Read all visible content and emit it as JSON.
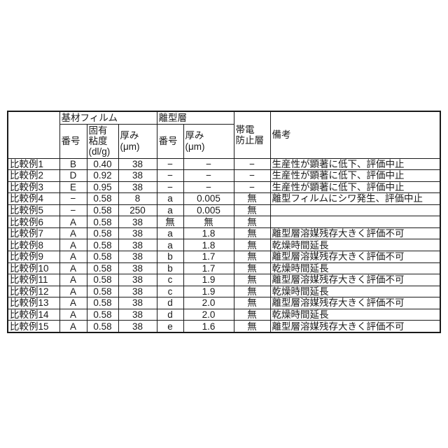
{
  "page": {
    "background": "#ffffff",
    "text_color": "#1a1a1a"
  },
  "table": {
    "header": {
      "corner": "",
      "base_film_group": "基材フィルム",
      "release_layer_group": "離型層",
      "antistatic_lines": [
        "帯電",
        "防止層"
      ],
      "remarks": "備考",
      "base_no": "番号",
      "viscosity_lines": [
        "固有",
        "粘度",
        "(dl/g)"
      ],
      "base_thickness_lines": [
        "厚み",
        "(μm)"
      ],
      "release_no": "番号",
      "release_thickness_lines": [
        "厚み",
        "(μm)"
      ]
    },
    "rows": [
      {
        "label": "比較例1",
        "base_no": "B",
        "viscosity": "0.40",
        "thickness": "38",
        "release_no": "−",
        "release_thickness": "−",
        "antistatic": "−",
        "remarks": "生産性が顕著に低下、評価中止"
      },
      {
        "label": "比較例2",
        "base_no": "D",
        "viscosity": "0.92",
        "thickness": "38",
        "release_no": "−",
        "release_thickness": "−",
        "antistatic": "−",
        "remarks": "生産性が顕著に低下、評価中止"
      },
      {
        "label": "比較例3",
        "base_no": "E",
        "viscosity": "0.95",
        "thickness": "38",
        "release_no": "−",
        "release_thickness": "−",
        "antistatic": "−",
        "remarks": "生産性が顕著に低下、評価中止"
      },
      {
        "label": "比較例4",
        "base_no": "−",
        "viscosity": "0.58",
        "thickness": "8",
        "release_no": "a",
        "release_thickness": "0.005",
        "antistatic": "無",
        "remarks": "離型フィルムにシワ発生、評価中止"
      },
      {
        "label": "比較例5",
        "base_no": "−",
        "viscosity": "0.58",
        "thickness": "250",
        "release_no": "a",
        "release_thickness": "0.005",
        "antistatic": "無",
        "remarks": ""
      },
      {
        "label": "比較例6",
        "base_no": "A",
        "viscosity": "0.58",
        "thickness": "38",
        "release_no": "無",
        "release_thickness": "無",
        "antistatic": "無",
        "remarks": ""
      },
      {
        "label": "比較例7",
        "base_no": "A",
        "viscosity": "0.58",
        "thickness": "38",
        "release_no": "a",
        "release_thickness": "1.8",
        "antistatic": "無",
        "remarks": "離型層溶媒残存大きく評価不可"
      },
      {
        "label": "比較例8",
        "base_no": "A",
        "viscosity": "0.58",
        "thickness": "38",
        "release_no": "a",
        "release_thickness": "1.8",
        "antistatic": "無",
        "remarks": "乾燥時間延長"
      },
      {
        "label": "比較例9",
        "base_no": "A",
        "viscosity": "0.58",
        "thickness": "38",
        "release_no": "b",
        "release_thickness": "1.7",
        "antistatic": "無",
        "remarks": "離型層溶媒残存大きく評価不可"
      },
      {
        "label": "比較例10",
        "base_no": "A",
        "viscosity": "0.58",
        "thickness": "38",
        "release_no": "b",
        "release_thickness": "1.7",
        "antistatic": "無",
        "remarks": "乾燥時間延長"
      },
      {
        "label": "比較例11",
        "base_no": "A",
        "viscosity": "0.58",
        "thickness": "38",
        "release_no": "c",
        "release_thickness": "1.9",
        "antistatic": "無",
        "remarks": "離型層溶媒残存大きく評価不可"
      },
      {
        "label": "比較例12",
        "base_no": "A",
        "viscosity": "0.58",
        "thickness": "38",
        "release_no": "c",
        "release_thickness": "1.9",
        "antistatic": "無",
        "remarks": "乾燥時間延長"
      },
      {
        "label": "比較例13",
        "base_no": "A",
        "viscosity": "0.58",
        "thickness": "38",
        "release_no": "d",
        "release_thickness": "2.0",
        "antistatic": "無",
        "remarks": "離型層溶媒残存大きく評価不可"
      },
      {
        "label": "比較例14",
        "base_no": "A",
        "viscosity": "0.58",
        "thickness": "38",
        "release_no": "d",
        "release_thickness": "2.0",
        "antistatic": "無",
        "remarks": "乾燥時間延長"
      },
      {
        "label": "比較例15",
        "base_no": "A",
        "viscosity": "0.58",
        "thickness": "38",
        "release_no": "e",
        "release_thickness": "1.6",
        "antistatic": "無",
        "remarks": "離型層溶媒残存大きく評価不可"
      }
    ]
  }
}
